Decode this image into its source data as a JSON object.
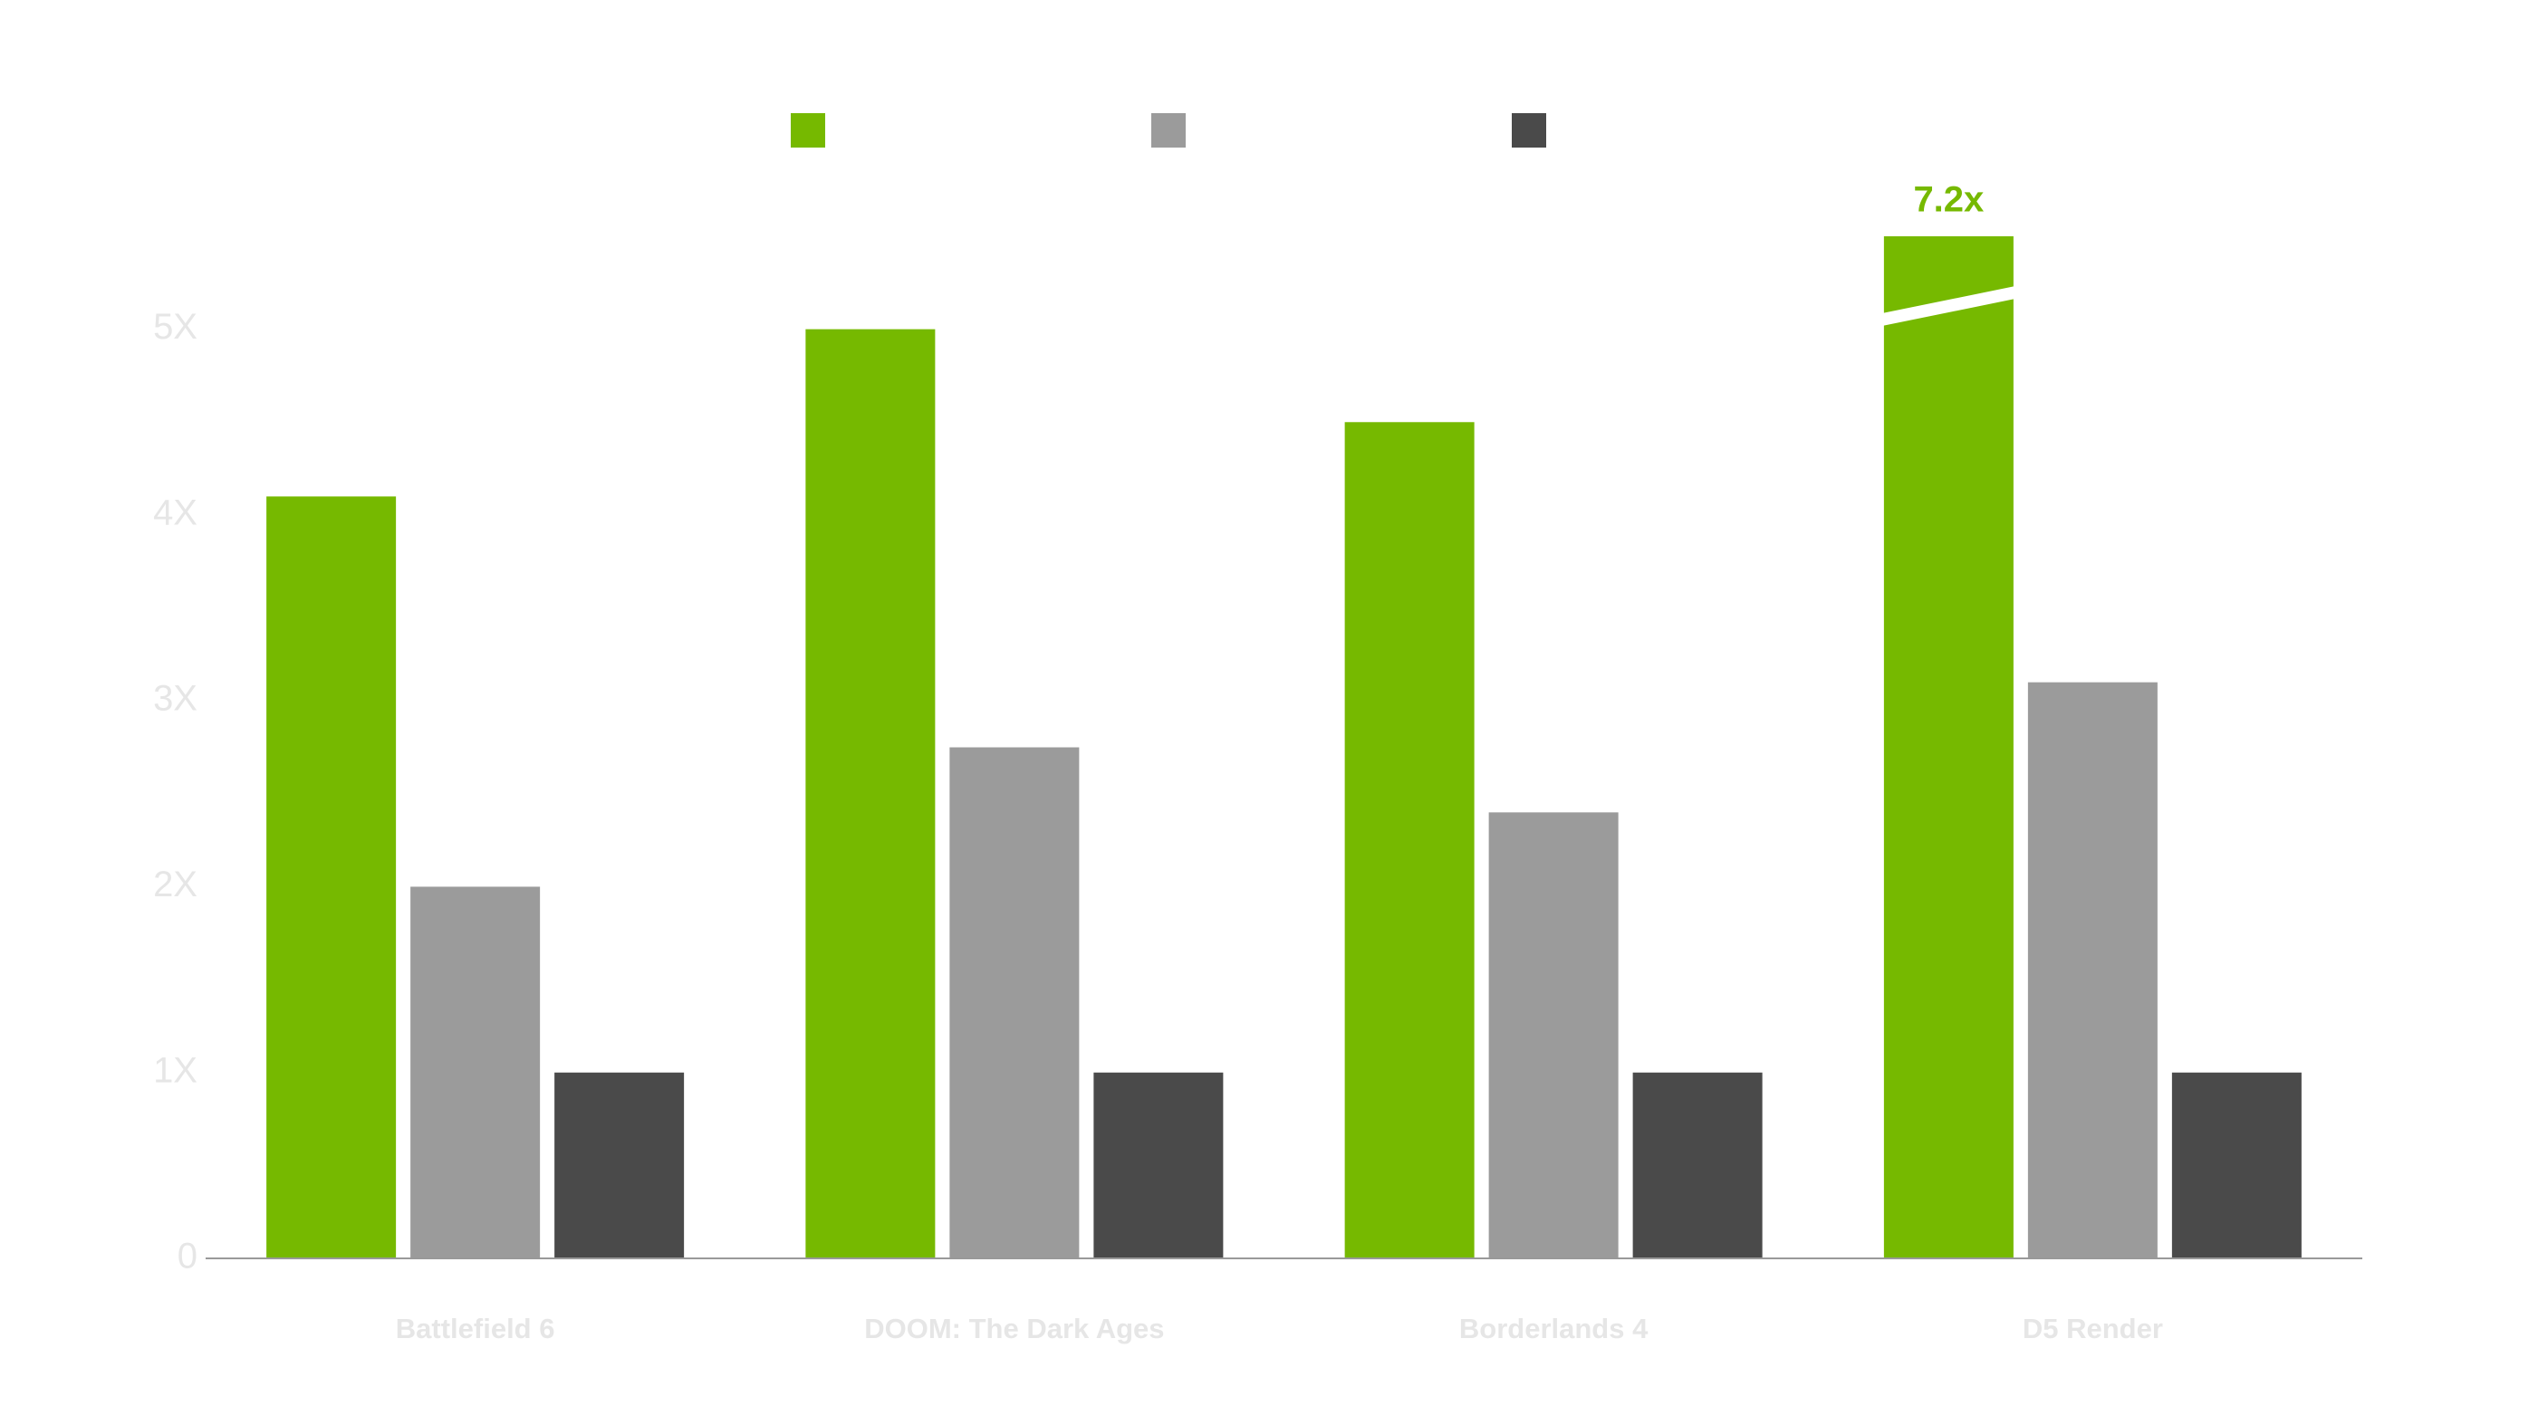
{
  "chart_data": {
    "type": "bar",
    "categories": [
      "Battlefield 6",
      "DOOM: The Dark Ages",
      "Borderlands 4",
      "D5 Render"
    ],
    "series": [
      {
        "color": "#76b900",
        "values": [
          4.1,
          5.0,
          4.5,
          7.2
        ],
        "value_labels": [
          null,
          null,
          null,
          "7.2x"
        ]
      },
      {
        "color": "#9b9b9b",
        "values": [
          2.0,
          2.75,
          2.4,
          3.1
        ]
      },
      {
        "color": "#4a4a4a",
        "values": [
          1.0,
          1.0,
          1.0,
          1.0
        ]
      }
    ],
    "ylim": [
      0,
      5.5
    ],
    "yticks": [
      0,
      {
        "value": 1,
        "label": "1X"
      },
      {
        "value": 2,
        "label": "2X"
      },
      {
        "value": 3,
        "label": "3X"
      },
      {
        "value": 4,
        "label": "4X"
      },
      {
        "value": 5,
        "label": "5X"
      }
    ],
    "grid": false
  }
}
